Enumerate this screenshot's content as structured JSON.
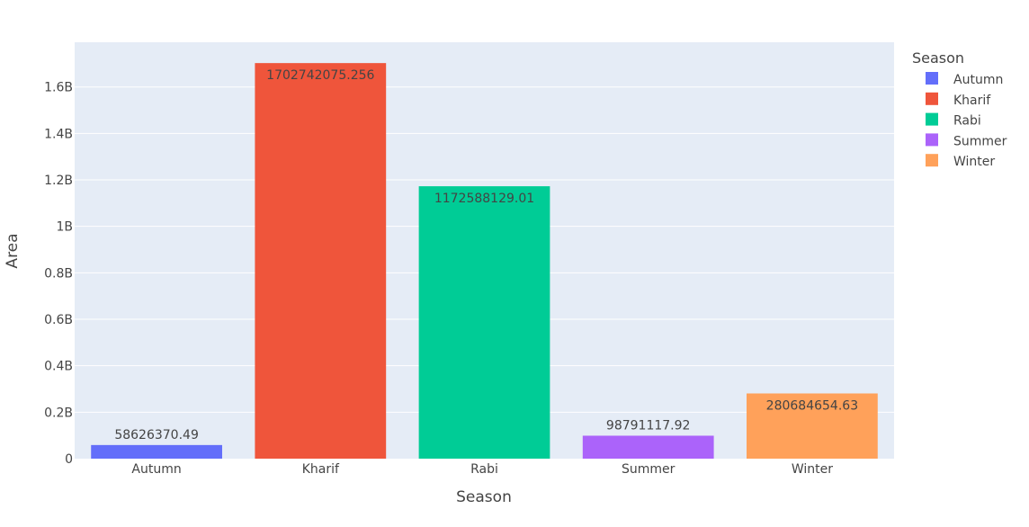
{
  "chart_data": {
    "type": "bar",
    "categories": [
      "Autumn",
      "Kharif",
      "Rabi",
      "Summer",
      "Winter"
    ],
    "values": [
      58626370.49,
      1702742075.256,
      1172588129.01,
      98791117.92,
      280684654.63
    ],
    "value_labels": [
      "58626370.49",
      "1702742075.256",
      "1172588129.01",
      "98791117.92",
      "280684654.63"
    ],
    "colors": [
      "#636efa",
      "#EF553B",
      "#00cc96",
      "#ab63fa",
      "#FFA15A"
    ],
    "xlabel": "Season",
    "ylabel": "Area",
    "ylim": [
      0,
      1792360079.2
    ],
    "yticks": [
      0,
      200000000,
      400000000,
      600000000,
      800000000,
      1000000000,
      1200000000,
      1400000000,
      1600000000
    ],
    "ytick_labels": [
      "0",
      "0.2B",
      "0.4B",
      "0.6B",
      "0.8B",
      "1B",
      "1.2B",
      "1.4B",
      "1.6B"
    ],
    "grid": true,
    "plot_background": "#E5ECF6",
    "legend": {
      "title": "Season",
      "placement": "right",
      "entries": [
        "Autumn",
        "Kharif",
        "Rabi",
        "Summer",
        "Winter"
      ]
    }
  }
}
